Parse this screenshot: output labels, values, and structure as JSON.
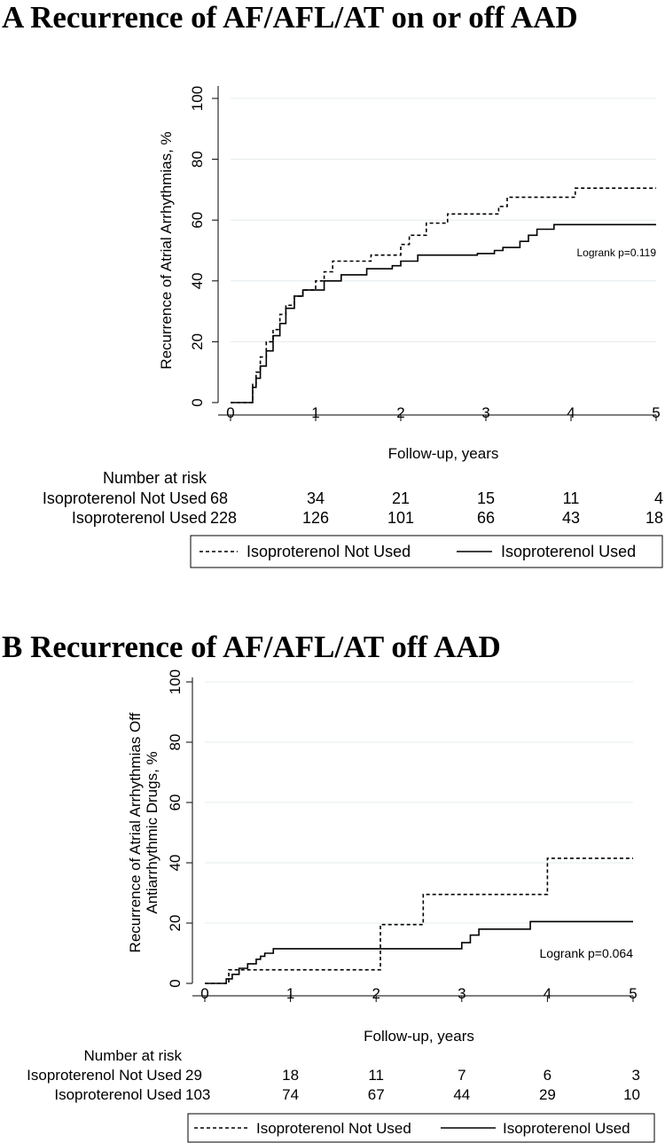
{
  "chart_data": [
    {
      "type": "line",
      "panel_title": "A Recurrence of AF/AFL/AT on or off AAD",
      "xlabel": "Follow-up, years",
      "ylabel": "Recurrence of Atrial Arrhythmias, %",
      "xlim": [
        0,
        5
      ],
      "ylim": [
        0,
        100
      ],
      "xticks": [
        0,
        1,
        2,
        3,
        4,
        5
      ],
      "yticks": [
        0,
        20,
        40,
        60,
        80,
        100
      ],
      "grid": true,
      "annotation": "Logrank p=0.119",
      "legend": {
        "position": "bottom",
        "entries": [
          "Isoproterenol Not Used",
          "Isoproterenol Used"
        ]
      },
      "series": [
        {
          "name": "Isoproterenol Not Used",
          "style": "dashed",
          "x": [
            0,
            0.24,
            0.26,
            0.3,
            0.35,
            0.42,
            0.5,
            0.58,
            0.65,
            0.75,
            0.85,
            1.0,
            1.1,
            1.2,
            1.55,
            1.65,
            1.9,
            2.0,
            2.1,
            2.3,
            2.55,
            2.9,
            3.15,
            3.22,
            3.25,
            3.8,
            4.0,
            4.05,
            5.0
          ],
          "y": [
            0,
            0,
            6,
            10,
            15,
            20,
            24,
            29,
            32,
            35,
            37,
            40,
            43,
            46.5,
            46.5,
            48.5,
            48.5,
            52,
            55,
            59,
            62,
            62,
            64.5,
            64.5,
            67.5,
            67.5,
            67.5,
            70.5,
            70.5
          ]
        },
        {
          "name": "Isoproterenol Used",
          "style": "solid",
          "x": [
            0,
            0.25,
            0.26,
            0.3,
            0.35,
            0.42,
            0.5,
            0.58,
            0.65,
            0.75,
            0.85,
            1.0,
            1.1,
            1.3,
            1.6,
            1.9,
            2.0,
            2.2,
            2.9,
            3.1,
            3.2,
            3.4,
            3.5,
            3.6,
            3.8,
            5.0
          ],
          "y": [
            0,
            0,
            5,
            8,
            12,
            17,
            22,
            26,
            31,
            35,
            37,
            37,
            40,
            42,
            44,
            45,
            46.5,
            48.5,
            49,
            50,
            51,
            53,
            55,
            57,
            58.5,
            58.5
          ]
        }
      ],
      "risk_table": {
        "header": "Number at risk",
        "times": [
          0,
          1,
          2,
          3,
          4,
          5
        ],
        "rows": [
          {
            "label": "Isoproterenol Not Used",
            "values": [
              "68",
              "34",
              "21",
              "15",
              "11",
              "4"
            ]
          },
          {
            "label": "Isoproterenol Used",
            "values": [
              "228",
              "126",
              "101",
              "66",
              "43",
              "18"
            ]
          }
        ]
      }
    },
    {
      "type": "line",
      "panel_title": "B Recurrence of AF/AFL/AT off AAD",
      "xlabel": "Follow-up, years",
      "ylabel": [
        "Recurrence of Atrial Arrhythmias Off",
        "Antiarrhythmic Drugs, %"
      ],
      "xlim": [
        0,
        5
      ],
      "ylim": [
        0,
        100
      ],
      "xticks": [
        0,
        1,
        2,
        3,
        4,
        5
      ],
      "yticks": [
        0,
        20,
        40,
        60,
        80,
        100
      ],
      "grid": true,
      "annotation": "Logrank p=0.064",
      "legend": {
        "position": "bottom",
        "entries": [
          "Isoproterenol Not Used",
          "Isoproterenol Used"
        ]
      },
      "series": [
        {
          "name": "Isoproterenol Not Used",
          "style": "dashed",
          "x": [
            0,
            0.28,
            0.45,
            1.95,
            2.05,
            2.55,
            4.0,
            5.0
          ],
          "y": [
            0,
            4.5,
            4.5,
            4.5,
            19.5,
            29.5,
            41.5,
            41.5
          ],
          "step": true
        },
        {
          "name": "Isoproterenol Used",
          "style": "solid",
          "x": [
            0,
            0.25,
            0.32,
            0.4,
            0.5,
            0.6,
            0.65,
            0.7,
            0.8,
            1.0,
            2.0,
            2.1,
            2.9,
            3.0,
            3.1,
            3.2,
            3.3,
            3.5,
            3.8,
            5.0
          ],
          "y": [
            0,
            1.5,
            3,
            5,
            6.5,
            8,
            9,
            10,
            11.5,
            11.5,
            11.5,
            11.5,
            11.5,
            13.5,
            16,
            18,
            18,
            18,
            20.5,
            20.5
          ],
          "step": true
        }
      ],
      "risk_table": {
        "header": "Number at risk",
        "times": [
          0,
          1,
          2,
          3,
          4,
          5
        ],
        "rows": [
          {
            "label": "Isoproterenol Not Used",
            "values": [
              "29",
              "18",
              "11",
              "7",
              "6",
              "3"
            ]
          },
          {
            "label": "Isoproterenol Used",
            "values": [
              "103",
              "74",
              "67",
              "44",
              "29",
              "10"
            ]
          }
        ]
      }
    }
  ]
}
